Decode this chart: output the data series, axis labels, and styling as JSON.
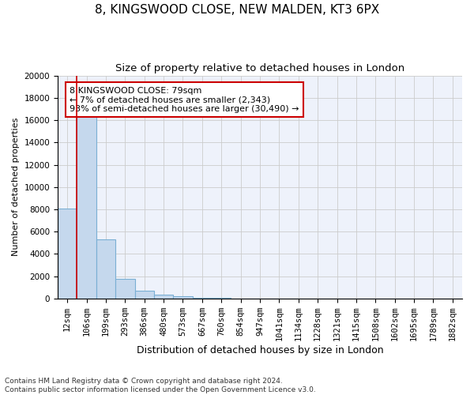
{
  "title": "8, KINGSWOOD CLOSE, NEW MALDEN, KT3 6PX",
  "subtitle": "Size of property relative to detached houses in London",
  "xlabel": "Distribution of detached houses by size in London",
  "ylabel": "Number of detached properties",
  "categories": [
    "12sqm",
    "106sqm",
    "199sqm",
    "293sqm",
    "386sqm",
    "480sqm",
    "573sqm",
    "667sqm",
    "760sqm",
    "854sqm",
    "947sqm",
    "1041sqm",
    "1134sqm",
    "1228sqm",
    "1321sqm",
    "1415sqm",
    "1508sqm",
    "1602sqm",
    "1695sqm",
    "1789sqm",
    "1882sqm"
  ],
  "values": [
    8100,
    16500,
    5300,
    1800,
    700,
    320,
    200,
    100,
    60,
    0,
    0,
    0,
    0,
    0,
    0,
    0,
    0,
    0,
    0,
    0,
    0
  ],
  "bar_color": "#c5d8ed",
  "bar_edge_color": "#7aafd4",
  "annotation_box_text": "8 KINGSWOOD CLOSE: 79sqm\n← 7% of detached houses are smaller (2,343)\n93% of semi-detached houses are larger (30,490) →",
  "annotation_box_color": "#ffffff",
  "annotation_box_edge_color": "#cc0000",
  "vline_color": "#cc0000",
  "vline_x": 0.5,
  "ylim": [
    0,
    20000
  ],
  "yticks": [
    0,
    2000,
    4000,
    6000,
    8000,
    10000,
    12000,
    14000,
    16000,
    18000,
    20000
  ],
  "footnote": "Contains HM Land Registry data © Crown copyright and database right 2024.\nContains public sector information licensed under the Open Government Licence v3.0.",
  "bg_color": "#eef2fb",
  "grid_color": "#cccccc",
  "title_fontsize": 11,
  "subtitle_fontsize": 9.5,
  "xlabel_fontsize": 9,
  "ylabel_fontsize": 8,
  "tick_fontsize": 7.5,
  "footnote_fontsize": 6.5
}
